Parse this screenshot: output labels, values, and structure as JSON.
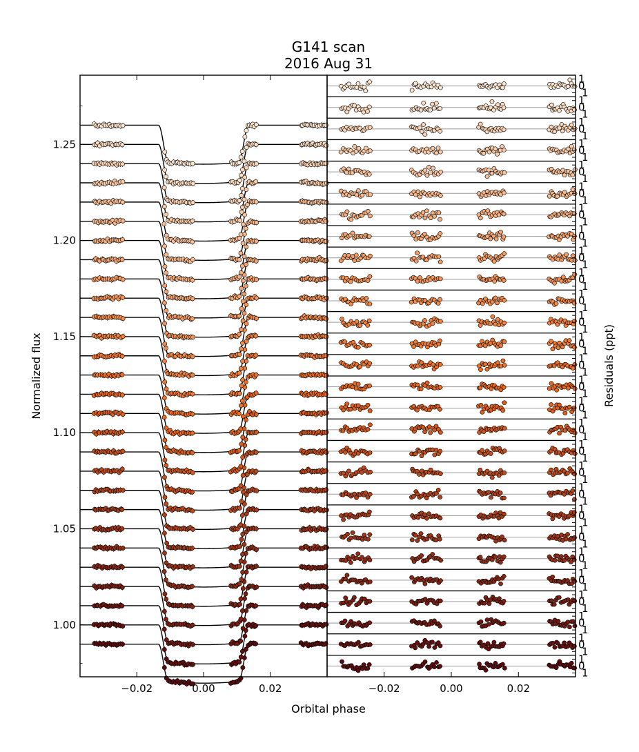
{
  "chart_data": {
    "type": "scatter",
    "title_line1": "G141 scan",
    "title_line2": "2016 Aug 31",
    "xlabel": "Orbital phase",
    "left_panel": {
      "ylabel": "Normalized flux",
      "xlim": [
        -0.037,
        0.037
      ],
      "ylim": [
        0.973,
        1.286
      ],
      "xticks": [
        -0.02,
        0.0,
        0.02
      ],
      "xtick_labels": [
        "−0.02",
        "0.00",
        "0.02"
      ],
      "yticks": [
        1.0,
        1.05,
        1.1,
        1.15,
        1.2,
        1.25
      ],
      "ytick_labels": [
        "1.00",
        "1.05",
        "1.10",
        "1.15",
        "1.20",
        "1.25"
      ],
      "n_channels": 28,
      "channel_offset_step": 0.01,
      "transit_depth": 0.0195,
      "ingress_phase": [
        -0.0135,
        -0.0105
      ],
      "egress_phase": [
        0.0105,
        0.0135
      ],
      "observed_phase_windows": [
        [
          -0.033,
          -0.024
        ],
        [
          -0.012,
          -0.003
        ],
        [
          0.008,
          0.016
        ],
        [
          0.029,
          0.037
        ]
      ]
    },
    "right_panel": {
      "ylabel": "Residuals (ppt)",
      "xlim": [
        -0.037,
        0.037
      ],
      "xticks": [
        -0.02,
        0.0,
        0.02
      ],
      "xtick_labels": [
        "−0.02",
        "0.00",
        "0.02"
      ],
      "residual_tick_labels": [
        "1",
        "0",
        "1"
      ],
      "n_channels": 28
    },
    "colors": {
      "light_channel": "#fde6cf",
      "mid_channel": "#f06b1d",
      "dark_channel": "#5c0a0e",
      "model_line": "#000000",
      "zero_line": "#9a9a9a"
    }
  }
}
